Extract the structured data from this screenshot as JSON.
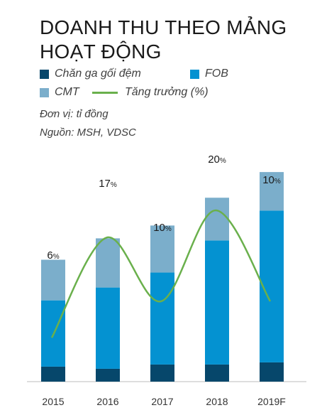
{
  "title_line1": "DOANH THU THEO MẢNG",
  "title_line2": "HOẠT ĐỘNG",
  "unit_note": "Đơn vị: tỉ đồng",
  "source_note": "Nguồn: MSH, VDSC",
  "chart_data": {
    "type": "bar",
    "stacked": true,
    "categories": [
      "2015",
      "2016",
      "2017",
      "2018",
      "2019F"
    ],
    "series": [
      {
        "name": "Chăn ga gối đệm",
        "color": "#06476b",
        "values": [
          0.7,
          0.6,
          0.8,
          0.8,
          0.9
        ]
      },
      {
        "name": "FOB",
        "color": "#0492d1",
        "values": [
          3.1,
          3.8,
          4.3,
          5.8,
          7.1
        ]
      },
      {
        "name": "CMT",
        "color": "#7baecb",
        "values": [
          1.9,
          2.3,
          2.2,
          2.0,
          1.8
        ]
      }
    ],
    "line_series": {
      "name": "Tăng trưởng (%)",
      "color": "#6ab04c",
      "values": [
        6,
        17,
        10,
        20,
        10
      ],
      "labels": [
        "6%",
        "17%",
        "10%",
        "20%",
        "10%"
      ]
    },
    "ylim": [
      0,
      11
    ],
    "grid": false,
    "legend": "top"
  }
}
